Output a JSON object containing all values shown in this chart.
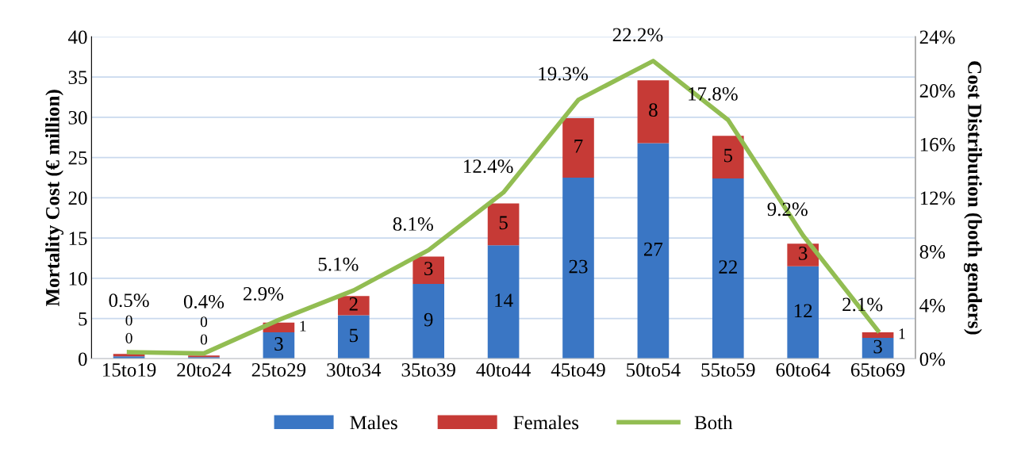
{
  "chart_data": {
    "type": "bar",
    "stacked": true,
    "ylabel": "Mortality Cost (€ million)",
    "y2label": "Cost Distribution (both genders)",
    "categories": [
      "15to19",
      "20to24",
      "25to29",
      "30to34",
      "35to39",
      "40to44",
      "45to49",
      "50to54",
      "55to59",
      "60to64",
      "65to69"
    ],
    "series": [
      {
        "name": "Males",
        "color": "#3a76c4",
        "values": [
          0.3,
          0.2,
          3.3,
          5.4,
          9.3,
          14.1,
          22.5,
          26.8,
          22.4,
          11.5,
          2.6
        ],
        "value_labels": [
          "0",
          "0",
          "3",
          "5",
          "9",
          "14",
          "23",
          "27",
          "22",
          "12",
          "3"
        ]
      },
      {
        "name": "Females",
        "color": "#c63a36",
        "values": [
          0.3,
          0.2,
          1.2,
          2.4,
          3.4,
          5.2,
          7.4,
          7.8,
          5.3,
          2.8,
          0.7
        ],
        "value_labels": [
          "0",
          "0",
          "1",
          "2",
          "3",
          "5",
          "7",
          "8",
          "5",
          "3",
          "1"
        ]
      },
      {
        "name": "Both",
        "type": "line",
        "axis": "y2",
        "color": "#92bd52",
        "values": [
          0.5,
          0.4,
          2.9,
          5.1,
          8.1,
          12.4,
          19.3,
          22.2,
          17.8,
          9.2,
          2.1
        ],
        "value_labels": [
          "0.5%",
          "0.4%",
          "2.9%",
          "5.1%",
          "8.1%",
          "12.4%",
          "19.3%",
          "22.2%",
          "17.8%",
          "9.2%",
          "2.1%"
        ]
      }
    ],
    "ylim": [
      0,
      40
    ],
    "yticks": [
      0,
      5,
      10,
      15,
      20,
      25,
      30,
      35,
      40
    ],
    "y2lim": [
      0,
      24
    ],
    "y2ticks": [
      {
        "value": 0,
        "label": "0%"
      },
      {
        "value": 4,
        "label": "4%"
      },
      {
        "value": 8,
        "label": "8%"
      },
      {
        "value": 12,
        "label": "12%"
      },
      {
        "value": 16,
        "label": "16%"
      },
      {
        "value": 20,
        "label": "20%"
      },
      {
        "value": 24,
        "label": "24%"
      }
    ],
    "grid": "y",
    "legend": "bottom"
  }
}
